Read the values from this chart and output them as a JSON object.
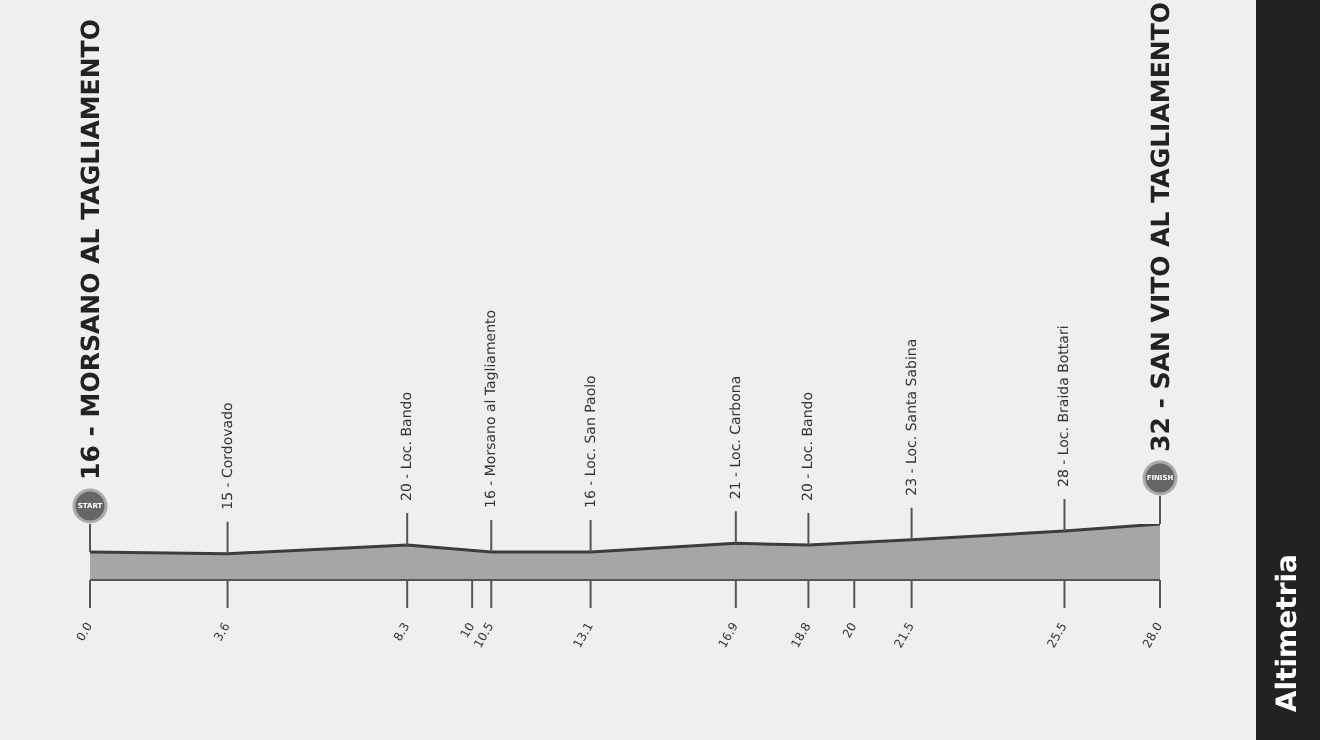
{
  "chart_data": {
    "type": "area",
    "title": "Altimetria",
    "x": [
      0,
      3.6,
      8.3,
      10.5,
      13.1,
      16.9,
      18.8,
      21.5,
      25.5,
      28.0
    ],
    "values": [
      16,
      15,
      20,
      16,
      16,
      21,
      20,
      23,
      28,
      32
    ],
    "value_labels": [
      "16 - MORSANO AL TAGLIAMENTO",
      "15 - Cordovado",
      "20 - Loc. Bando",
      "16 - Morsano al Tagliamento",
      "16 - Loc. San Paolo",
      "21 - Loc. Carbona",
      "20 - Loc. Bando",
      "23 - Loc. Santa Sabina",
      "28 - Loc. Braida Bottari",
      "32 - SAN VITO AL TAGLIAMENTO"
    ],
    "color": "#a6a6a6",
    "xlim": [
      0,
      28
    ],
    "xticks": [
      {
        "value": 0,
        "label": "0.0"
      },
      3.6,
      8.3,
      10,
      10.5,
      13.1,
      16.9,
      18.8,
      20,
      21.5,
      25.5,
      {
        "value": 28,
        "label": "28.0"
      }
    ],
    "tick_labels": "x",
    "annotations": [
      "START",
      "FINISH"
    ]
  }
}
